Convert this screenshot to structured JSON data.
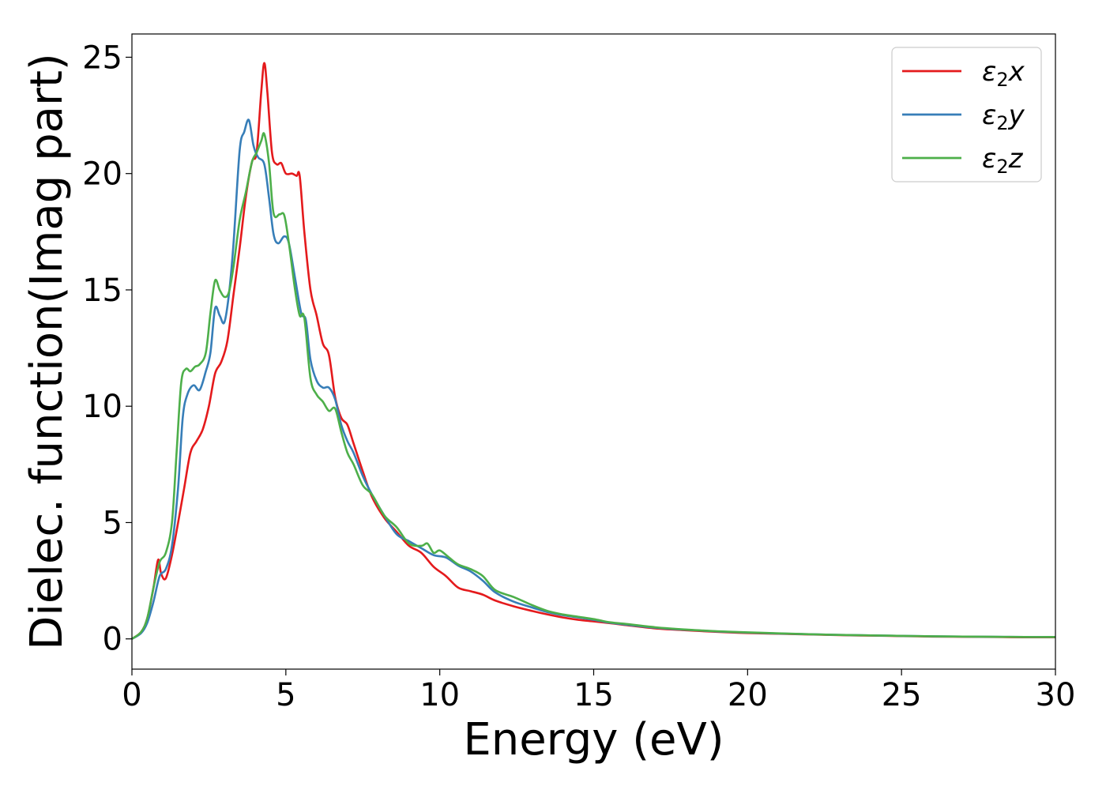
{
  "chart_data": {
    "type": "line",
    "xlabel": "Energy (eV)",
    "ylabel": "Dielec. function(Imag part)",
    "xlim": [
      0,
      30
    ],
    "ylim": [
      -1.3,
      26
    ],
    "xticks": [
      0,
      5,
      10,
      15,
      20,
      25,
      30
    ],
    "yticks": [
      0,
      5,
      10,
      15,
      20,
      25
    ],
    "grid": false,
    "legend_position": "top-right",
    "series": [
      {
        "name": "ε₂x",
        "legend_base": "ε",
        "legend_sub": "2",
        "legend_var": "x",
        "color": "#e41a1c",
        "points": [
          [
            0,
            0
          ],
          [
            0.3,
            0.3
          ],
          [
            0.5,
            0.9
          ],
          [
            0.7,
            2.2
          ],
          [
            0.85,
            3.4
          ],
          [
            0.95,
            2.8
          ],
          [
            1.1,
            2.6
          ],
          [
            1.3,
            3.6
          ],
          [
            1.5,
            5.0
          ],
          [
            1.7,
            6.5
          ],
          [
            1.9,
            8.0
          ],
          [
            2.1,
            8.5
          ],
          [
            2.3,
            9.0
          ],
          [
            2.5,
            10.0
          ],
          [
            2.7,
            11.4
          ],
          [
            2.9,
            11.9
          ],
          [
            3.1,
            12.8
          ],
          [
            3.3,
            14.8
          ],
          [
            3.5,
            16.8
          ],
          [
            3.7,
            19.0
          ],
          [
            3.9,
            20.5
          ],
          [
            4.05,
            20.9
          ],
          [
            4.2,
            23.5
          ],
          [
            4.3,
            24.75
          ],
          [
            4.4,
            23.5
          ],
          [
            4.55,
            20.9
          ],
          [
            4.7,
            20.4
          ],
          [
            4.85,
            20.45
          ],
          [
            5.0,
            20.0
          ],
          [
            5.2,
            20.0
          ],
          [
            5.35,
            19.9
          ],
          [
            5.45,
            19.9
          ],
          [
            5.6,
            17.5
          ],
          [
            5.8,
            15.0
          ],
          [
            6.0,
            13.9
          ],
          [
            6.2,
            12.7
          ],
          [
            6.4,
            12.2
          ],
          [
            6.6,
            10.4
          ],
          [
            6.8,
            9.5
          ],
          [
            7.0,
            9.2
          ],
          [
            7.2,
            8.4
          ],
          [
            7.5,
            7.2
          ],
          [
            7.8,
            6.1
          ],
          [
            8.2,
            5.2
          ],
          [
            8.6,
            4.6
          ],
          [
            9.0,
            4.0
          ],
          [
            9.4,
            3.7
          ],
          [
            9.8,
            3.1
          ],
          [
            10.2,
            2.7
          ],
          [
            10.6,
            2.2
          ],
          [
            11.0,
            2.05
          ],
          [
            11.4,
            1.9
          ],
          [
            11.8,
            1.65
          ],
          [
            12.4,
            1.4
          ],
          [
            13.0,
            1.2
          ],
          [
            13.5,
            1.05
          ],
          [
            14.0,
            0.92
          ],
          [
            14.5,
            0.82
          ],
          [
            15.0,
            0.75
          ],
          [
            15.5,
            0.68
          ],
          [
            16.0,
            0.6
          ],
          [
            17.0,
            0.45
          ],
          [
            18.0,
            0.37
          ],
          [
            19.0,
            0.3
          ],
          [
            20.0,
            0.25
          ],
          [
            21.0,
            0.22
          ],
          [
            22.0,
            0.19
          ],
          [
            23.0,
            0.16
          ],
          [
            24.0,
            0.14
          ],
          [
            25.0,
            0.12
          ],
          [
            26.0,
            0.1
          ],
          [
            27.0,
            0.09
          ],
          [
            28.0,
            0.08
          ],
          [
            29.0,
            0.07
          ],
          [
            30.0,
            0.07
          ]
        ]
      },
      {
        "name": "ε₂y",
        "legend_base": "ε",
        "legend_sub": "2",
        "legend_var": "y",
        "color": "#377eb8",
        "points": [
          [
            0,
            0
          ],
          [
            0.3,
            0.25
          ],
          [
            0.5,
            0.7
          ],
          [
            0.7,
            1.6
          ],
          [
            0.9,
            2.7
          ],
          [
            1.1,
            3.0
          ],
          [
            1.3,
            4.0
          ],
          [
            1.5,
            6.5
          ],
          [
            1.65,
            9.5
          ],
          [
            1.8,
            10.5
          ],
          [
            2.0,
            10.9
          ],
          [
            2.2,
            10.7
          ],
          [
            2.4,
            11.5
          ],
          [
            2.55,
            12.3
          ],
          [
            2.7,
            14.2
          ],
          [
            2.85,
            13.9
          ],
          [
            3.0,
            13.6
          ],
          [
            3.15,
            14.8
          ],
          [
            3.3,
            17.0
          ],
          [
            3.5,
            21.0
          ],
          [
            3.65,
            21.8
          ],
          [
            3.8,
            22.3
          ],
          [
            3.95,
            21.2
          ],
          [
            4.1,
            20.7
          ],
          [
            4.3,
            20.4
          ],
          [
            4.45,
            19.0
          ],
          [
            4.6,
            17.4
          ],
          [
            4.75,
            17.0
          ],
          [
            4.95,
            17.3
          ],
          [
            5.1,
            17.0
          ],
          [
            5.3,
            15.5
          ],
          [
            5.5,
            14.0
          ],
          [
            5.65,
            13.7
          ],
          [
            5.8,
            12.0
          ],
          [
            6.0,
            11.1
          ],
          [
            6.2,
            10.8
          ],
          [
            6.4,
            10.8
          ],
          [
            6.6,
            10.3
          ],
          [
            6.8,
            9.2
          ],
          [
            7.0,
            8.5
          ],
          [
            7.2,
            8.0
          ],
          [
            7.5,
            7.0
          ],
          [
            7.8,
            6.2
          ],
          [
            8.2,
            5.3
          ],
          [
            8.6,
            4.5
          ],
          [
            9.0,
            4.2
          ],
          [
            9.4,
            3.9
          ],
          [
            9.8,
            3.6
          ],
          [
            10.2,
            3.5
          ],
          [
            10.6,
            3.15
          ],
          [
            11.0,
            2.9
          ],
          [
            11.4,
            2.5
          ],
          [
            11.8,
            2.0
          ],
          [
            12.4,
            1.6
          ],
          [
            13.0,
            1.35
          ],
          [
            13.5,
            1.15
          ],
          [
            14.0,
            1.02
          ],
          [
            14.5,
            0.92
          ],
          [
            15.0,
            0.82
          ],
          [
            15.5,
            0.7
          ],
          [
            16.0,
            0.62
          ],
          [
            17.0,
            0.48
          ],
          [
            18.0,
            0.39
          ],
          [
            19.0,
            0.32
          ],
          [
            20.0,
            0.27
          ],
          [
            21.0,
            0.23
          ],
          [
            22.0,
            0.2
          ],
          [
            23.0,
            0.17
          ],
          [
            24.0,
            0.15
          ],
          [
            25.0,
            0.13
          ],
          [
            26.0,
            0.11
          ],
          [
            27.0,
            0.1
          ],
          [
            28.0,
            0.09
          ],
          [
            29.0,
            0.08
          ],
          [
            30.0,
            0.08
          ]
        ]
      },
      {
        "name": "ε₂z",
        "legend_base": "ε",
        "legend_sub": "2",
        "legend_var": "z",
        "color": "#4daf4a",
        "points": [
          [
            0,
            0
          ],
          [
            0.3,
            0.3
          ],
          [
            0.5,
            0.9
          ],
          [
            0.7,
            2.2
          ],
          [
            0.9,
            3.3
          ],
          [
            1.1,
            3.7
          ],
          [
            1.3,
            5.0
          ],
          [
            1.45,
            8.0
          ],
          [
            1.6,
            11.0
          ],
          [
            1.75,
            11.6
          ],
          [
            1.9,
            11.5
          ],
          [
            2.05,
            11.7
          ],
          [
            2.2,
            11.8
          ],
          [
            2.4,
            12.3
          ],
          [
            2.55,
            14.0
          ],
          [
            2.7,
            15.4
          ],
          [
            2.85,
            15.0
          ],
          [
            3.0,
            14.7
          ],
          [
            3.15,
            14.9
          ],
          [
            3.3,
            16.0
          ],
          [
            3.5,
            18.0
          ],
          [
            3.7,
            19.2
          ],
          [
            3.9,
            20.5
          ],
          [
            4.05,
            20.9
          ],
          [
            4.2,
            21.4
          ],
          [
            4.3,
            21.7
          ],
          [
            4.45,
            20.5
          ],
          [
            4.6,
            18.3
          ],
          [
            4.8,
            18.25
          ],
          [
            4.95,
            18.2
          ],
          [
            5.1,
            17.0
          ],
          [
            5.3,
            15.0
          ],
          [
            5.45,
            13.9
          ],
          [
            5.6,
            13.8
          ],
          [
            5.8,
            11.2
          ],
          [
            6.0,
            10.5
          ],
          [
            6.2,
            10.2
          ],
          [
            6.4,
            9.8
          ],
          [
            6.6,
            9.9
          ],
          [
            6.8,
            8.9
          ],
          [
            7.0,
            8.0
          ],
          [
            7.2,
            7.5
          ],
          [
            7.5,
            6.6
          ],
          [
            7.8,
            6.2
          ],
          [
            8.2,
            5.3
          ],
          [
            8.6,
            4.8
          ],
          [
            9.0,
            4.1
          ],
          [
            9.4,
            4.0
          ],
          [
            9.6,
            4.1
          ],
          [
            9.8,
            3.7
          ],
          [
            10.0,
            3.8
          ],
          [
            10.3,
            3.5
          ],
          [
            10.6,
            3.2
          ],
          [
            11.0,
            3.0
          ],
          [
            11.4,
            2.7
          ],
          [
            11.8,
            2.1
          ],
          [
            12.4,
            1.8
          ],
          [
            13.0,
            1.45
          ],
          [
            13.5,
            1.2
          ],
          [
            14.0,
            1.05
          ],
          [
            14.5,
            0.95
          ],
          [
            15.0,
            0.85
          ],
          [
            15.5,
            0.72
          ],
          [
            16.0,
            0.65
          ],
          [
            17.0,
            0.5
          ],
          [
            18.0,
            0.4
          ],
          [
            19.0,
            0.33
          ],
          [
            20.0,
            0.28
          ],
          [
            21.0,
            0.24
          ],
          [
            22.0,
            0.2
          ],
          [
            23.0,
            0.17
          ],
          [
            24.0,
            0.15
          ],
          [
            25.0,
            0.13
          ],
          [
            26.0,
            0.11
          ],
          [
            27.0,
            0.1
          ],
          [
            28.0,
            0.09
          ],
          [
            29.0,
            0.08
          ],
          [
            30.0,
            0.08
          ]
        ]
      }
    ]
  }
}
